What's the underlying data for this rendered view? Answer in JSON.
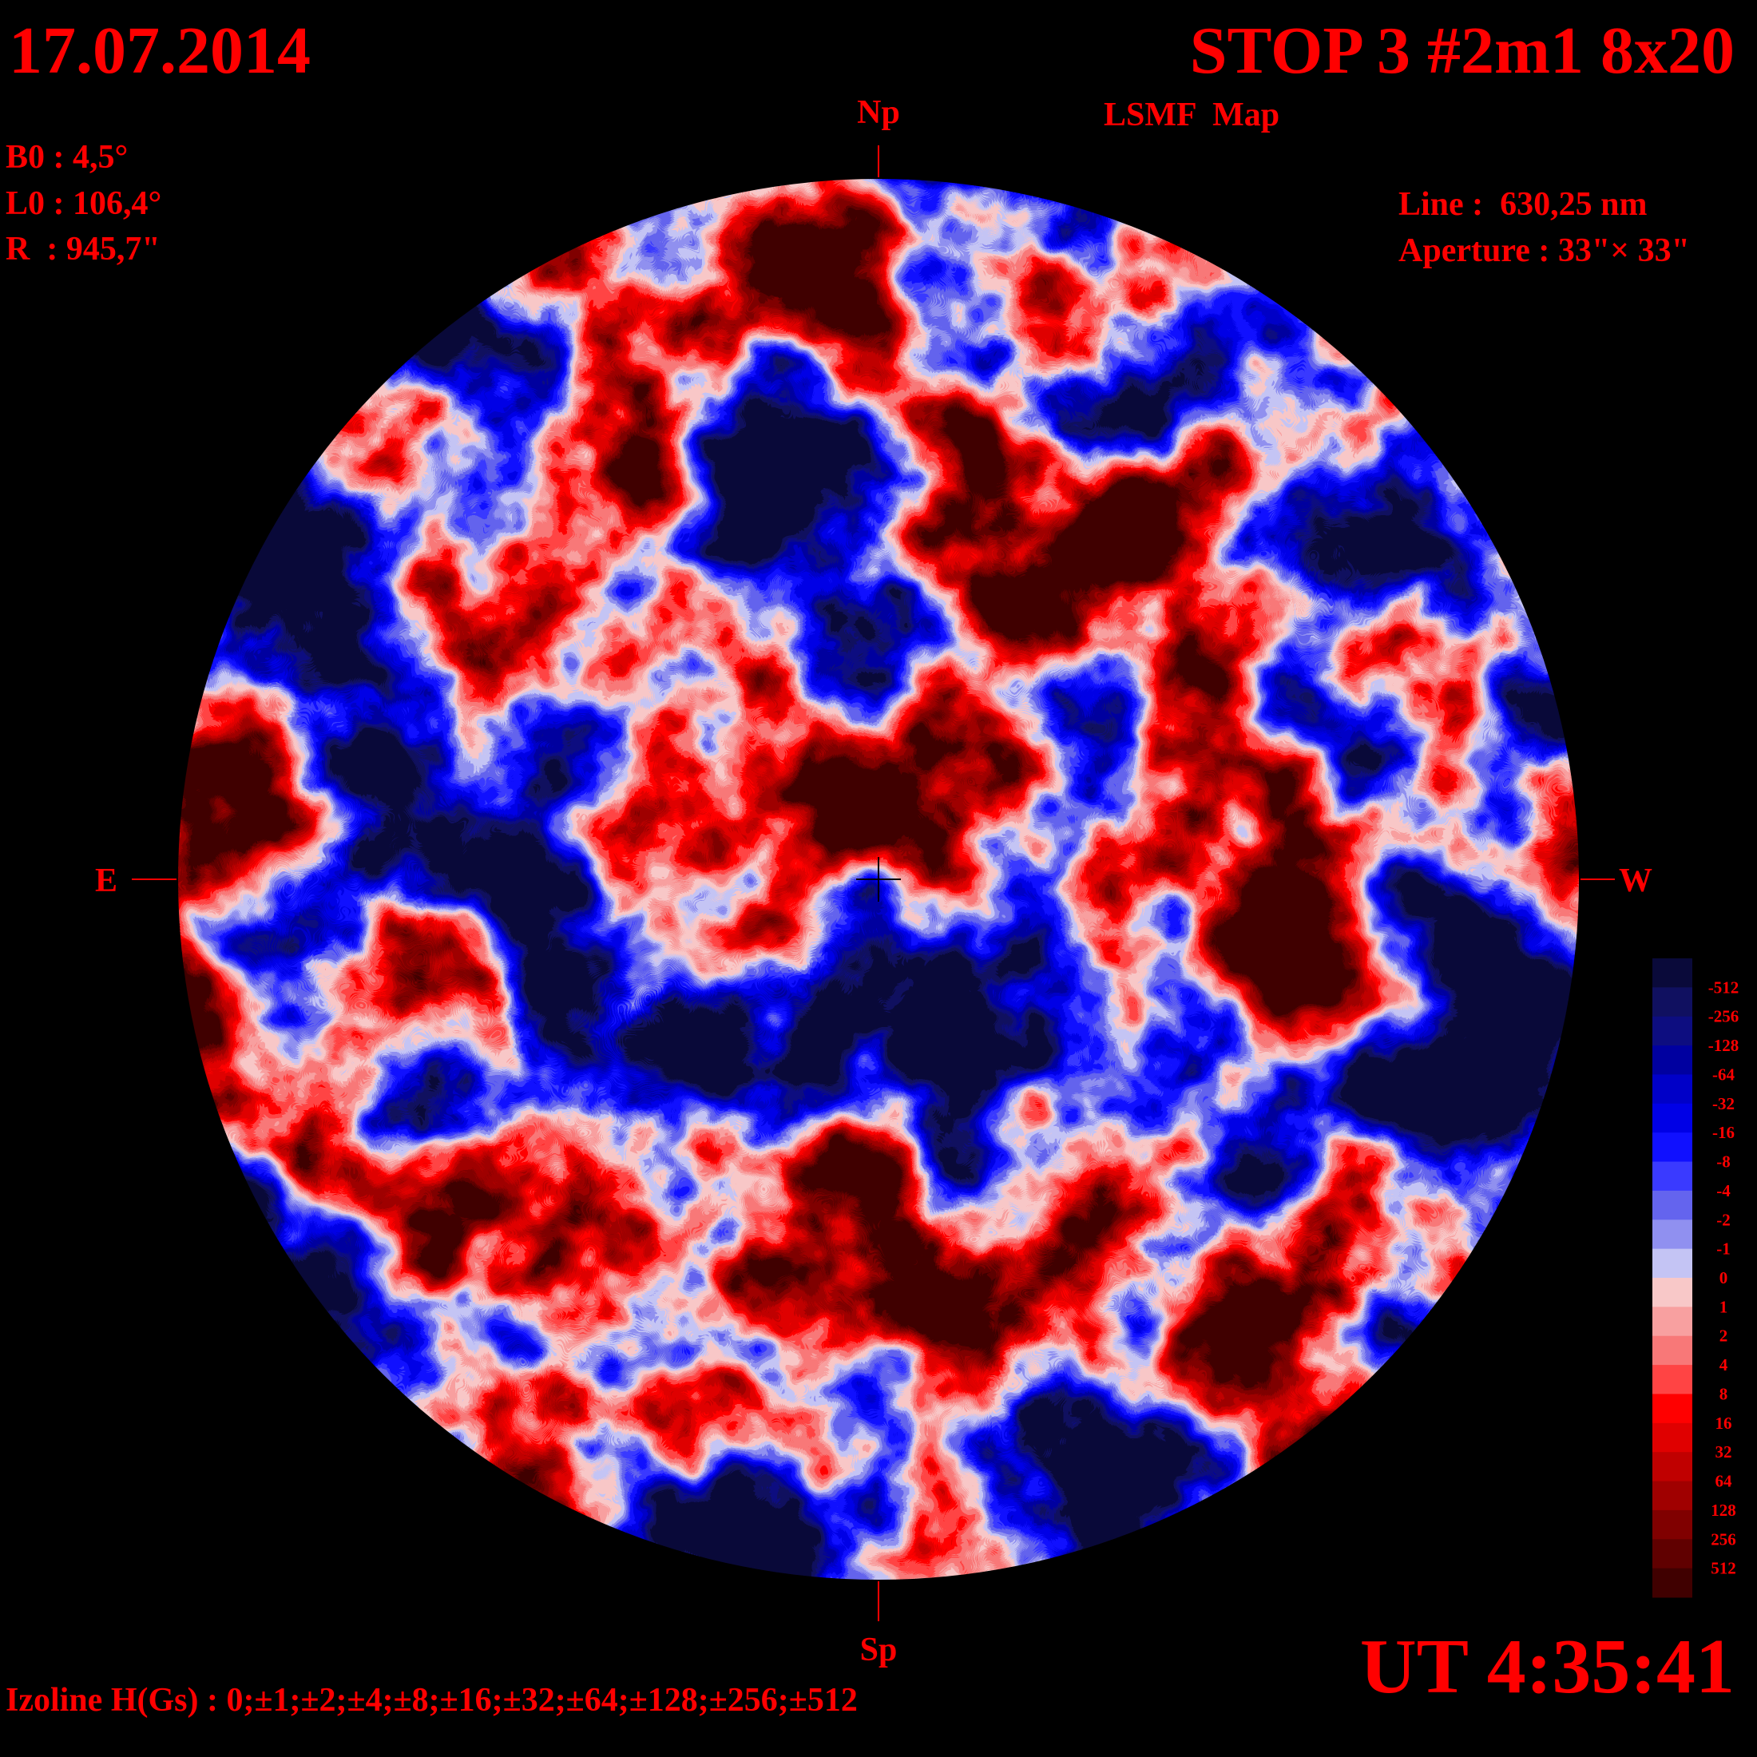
{
  "header": {
    "date": "17.07.2014",
    "title": "STOP 3 #2m1 8x20",
    "subtitle": "LSMF  Map",
    "time": "UT 4:35:41"
  },
  "parameters": [
    "B0 : 4,5°",
    "L0 : 106,4°",
    "R  : 945,7\""
  ],
  "instrument": [
    "Line :  630,25 nm",
    "Aperture : 33\"× 33\""
  ],
  "directions": {
    "north": "Np",
    "south": "Sp",
    "east": "E",
    "west": "W"
  },
  "legend": {
    "labels": [
      "-512",
      "-256",
      "-128",
      "-64",
      "-32",
      "-16",
      "-8",
      "-4",
      "-2",
      "-1",
      "0",
      "1",
      "2",
      "4",
      "8",
      "16",
      "32",
      "64",
      "128",
      "256",
      "512"
    ],
    "colors": [
      "#0a0a3a",
      "#101060",
      "#0d0d80",
      "#0000a0",
      "#0000c8",
      "#0000e6",
      "#1010ff",
      "#3a3aff",
      "#6464ee",
      "#9090f0",
      "#c4c4f4",
      "#f8c8c8",
      "#f8a0a0",
      "#f87878",
      "#ff4444",
      "#ff0000",
      "#e00000",
      "#c00000",
      "#a00000",
      "#800000",
      "#600000",
      "#400000"
    ]
  },
  "footer": "Izoline H(Gs) : 0;±1;±2;±4;±8;±16;±32;±64;±128;±256;±512"
}
